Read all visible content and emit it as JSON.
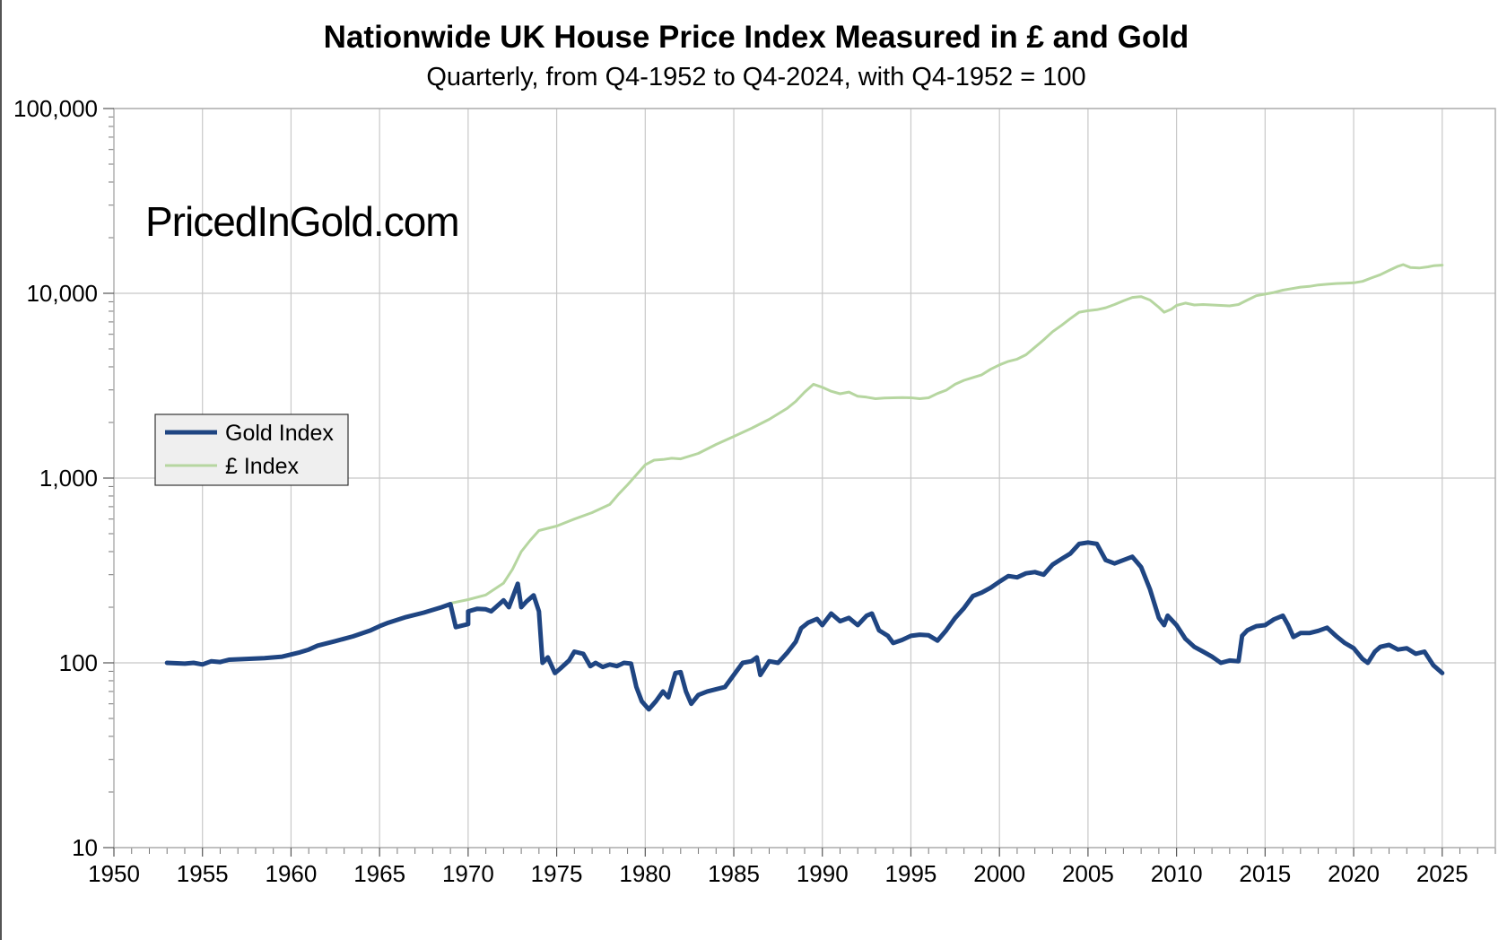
{
  "chart_data": {
    "type": "line",
    "title": "Nationwide UK House Price Index Measured in £ and Gold",
    "subtitle": "Quarterly, from Q4-1952 to Q4-2024, with Q4-1952 = 100",
    "watermark": "PricedInGold.com",
    "xlabel": "",
    "ylabel": "",
    "y_scale": "log",
    "xlim": [
      1950,
      2028
    ],
    "ylim": [
      10,
      100000
    ],
    "x_ticks": [
      1950,
      1955,
      1960,
      1965,
      1970,
      1975,
      1980,
      1985,
      1990,
      1995,
      2000,
      2005,
      2010,
      2015,
      2020,
      2025
    ],
    "x_tick_labels": [
      "1950",
      "1955",
      "1960",
      "1965",
      "1970",
      "1975",
      "1980",
      "1985",
      "1990",
      "1995",
      "2000",
      "2005",
      "2010",
      "2015",
      "2020",
      "2025"
    ],
    "y_ticks": [
      10,
      100,
      1000,
      10000,
      100000
    ],
    "y_tick_labels": [
      "10",
      "100",
      "1,000",
      "10,000",
      "100,000"
    ],
    "grid": true,
    "legend_position": "center-left",
    "series": [
      {
        "name": "Gold Index",
        "color": "#1f4582",
        "points": [
          [
            1953.0,
            100
          ],
          [
            1954.0,
            99
          ],
          [
            1954.5,
            100
          ],
          [
            1955.0,
            98
          ],
          [
            1955.5,
            102
          ],
          [
            1956.0,
            101
          ],
          [
            1956.5,
            104
          ],
          [
            1957.5,
            105
          ],
          [
            1958.5,
            106
          ],
          [
            1959.5,
            108
          ],
          [
            1960.5,
            114
          ],
          [
            1961.0,
            118
          ],
          [
            1961.5,
            124
          ],
          [
            1962.5,
            131
          ],
          [
            1963.5,
            139
          ],
          [
            1964.5,
            150
          ],
          [
            1965.0,
            158
          ],
          [
            1965.5,
            165
          ],
          [
            1966.5,
            177
          ],
          [
            1967.5,
            187
          ],
          [
            1968.5,
            200
          ],
          [
            1969.0,
            208
          ],
          [
            1969.3,
            156
          ],
          [
            1970.0,
            162
          ],
          [
            1970.0,
            190
          ],
          [
            1970.5,
            196
          ],
          [
            1971.0,
            195
          ],
          [
            1971.3,
            190
          ],
          [
            1972.0,
            218
          ],
          [
            1972.3,
            200
          ],
          [
            1972.8,
            268
          ],
          [
            1973.0,
            200
          ],
          [
            1973.3,
            215
          ],
          [
            1973.7,
            232
          ],
          [
            1974.0,
            190
          ],
          [
            1974.2,
            100
          ],
          [
            1974.5,
            107
          ],
          [
            1974.9,
            88
          ],
          [
            1975.2,
            93
          ],
          [
            1975.7,
            103
          ],
          [
            1976.0,
            115
          ],
          [
            1976.5,
            112
          ],
          [
            1976.9,
            96
          ],
          [
            1977.2,
            100
          ],
          [
            1977.6,
            95
          ],
          [
            1978.0,
            98
          ],
          [
            1978.4,
            96
          ],
          [
            1978.8,
            100
          ],
          [
            1979.2,
            99
          ],
          [
            1979.5,
            74
          ],
          [
            1979.8,
            62
          ],
          [
            1980.2,
            56
          ],
          [
            1980.6,
            62
          ],
          [
            1981.0,
            70
          ],
          [
            1981.3,
            65
          ],
          [
            1981.7,
            88
          ],
          [
            1982.0,
            89
          ],
          [
            1982.3,
            70
          ],
          [
            1982.6,
            60
          ],
          [
            1983.0,
            67
          ],
          [
            1983.5,
            70
          ],
          [
            1984.0,
            72
          ],
          [
            1984.5,
            74
          ],
          [
            1985.0,
            86
          ],
          [
            1985.5,
            100
          ],
          [
            1986.0,
            102
          ],
          [
            1986.3,
            107
          ],
          [
            1986.5,
            86
          ],
          [
            1987.0,
            102
          ],
          [
            1987.5,
            100
          ],
          [
            1988.0,
            113
          ],
          [
            1988.5,
            130
          ],
          [
            1988.8,
            154
          ],
          [
            1989.2,
            165
          ],
          [
            1989.7,
            173
          ],
          [
            1990.0,
            160
          ],
          [
            1990.5,
            185
          ],
          [
            1991.0,
            168
          ],
          [
            1991.5,
            175
          ],
          [
            1992.0,
            160
          ],
          [
            1992.5,
            180
          ],
          [
            1992.8,
            185
          ],
          [
            1993.2,
            150
          ],
          [
            1993.7,
            140
          ],
          [
            1994.0,
            128
          ],
          [
            1994.5,
            133
          ],
          [
            1995.0,
            140
          ],
          [
            1995.5,
            142
          ],
          [
            1996.0,
            141
          ],
          [
            1996.5,
            132
          ],
          [
            1997.0,
            150
          ],
          [
            1997.5,
            175
          ],
          [
            1998.0,
            198
          ],
          [
            1998.5,
            230
          ],
          [
            1999.0,
            240
          ],
          [
            1999.5,
            255
          ],
          [
            2000.0,
            275
          ],
          [
            2000.5,
            295
          ],
          [
            2001.0,
            290
          ],
          [
            2001.5,
            305
          ],
          [
            2002.0,
            310
          ],
          [
            2002.5,
            300
          ],
          [
            2003.0,
            340
          ],
          [
            2003.5,
            365
          ],
          [
            2004.0,
            390
          ],
          [
            2004.5,
            440
          ],
          [
            2005.0,
            448
          ],
          [
            2005.5,
            440
          ],
          [
            2006.0,
            360
          ],
          [
            2006.5,
            345
          ],
          [
            2007.0,
            360
          ],
          [
            2007.5,
            375
          ],
          [
            2008.0,
            330
          ],
          [
            2008.5,
            250
          ],
          [
            2009.0,
            175
          ],
          [
            2009.3,
            160
          ],
          [
            2009.5,
            180
          ],
          [
            2010.0,
            160
          ],
          [
            2010.5,
            135
          ],
          [
            2011.0,
            122
          ],
          [
            2011.5,
            115
          ],
          [
            2012.0,
            108
          ],
          [
            2012.5,
            100
          ],
          [
            2013.0,
            103
          ],
          [
            2013.5,
            102
          ],
          [
            2013.7,
            140
          ],
          [
            2014.0,
            150
          ],
          [
            2014.5,
            158
          ],
          [
            2015.0,
            160
          ],
          [
            2015.5,
            172
          ],
          [
            2016.0,
            180
          ],
          [
            2016.3,
            160
          ],
          [
            2016.6,
            138
          ],
          [
            2017.0,
            145
          ],
          [
            2017.5,
            145
          ],
          [
            2018.0,
            149
          ],
          [
            2018.5,
            155
          ],
          [
            2019.0,
            140
          ],
          [
            2019.5,
            128
          ],
          [
            2020.0,
            120
          ],
          [
            2020.5,
            105
          ],
          [
            2020.8,
            100
          ],
          [
            2021.2,
            115
          ],
          [
            2021.5,
            122
          ],
          [
            2022.0,
            125
          ],
          [
            2022.5,
            118
          ],
          [
            2023.0,
            120
          ],
          [
            2023.5,
            112
          ],
          [
            2024.0,
            115
          ],
          [
            2024.5,
            97
          ],
          [
            2025.0,
            88
          ]
        ]
      },
      {
        "name": "£ Index",
        "color": "#b6d6a0",
        "points": [
          [
            1969.0,
            210
          ],
          [
            1970.0,
            220
          ],
          [
            1971.0,
            233
          ],
          [
            1972.0,
            270
          ],
          [
            1972.5,
            320
          ],
          [
            1973.0,
            400
          ],
          [
            1973.5,
            460
          ],
          [
            1974.0,
            520
          ],
          [
            1975.0,
            550
          ],
          [
            1976.0,
            600
          ],
          [
            1977.0,
            650
          ],
          [
            1978.0,
            720
          ],
          [
            1978.5,
            820
          ],
          [
            1979.0,
            920
          ],
          [
            1980.0,
            1180
          ],
          [
            1980.5,
            1250
          ],
          [
            1981.0,
            1260
          ],
          [
            1981.5,
            1280
          ],
          [
            1982.0,
            1270
          ],
          [
            1983.0,
            1360
          ],
          [
            1984.0,
            1520
          ],
          [
            1985.0,
            1680
          ],
          [
            1986.0,
            1860
          ],
          [
            1987.0,
            2080
          ],
          [
            1988.0,
            2380
          ],
          [
            1988.5,
            2600
          ],
          [
            1989.0,
            2920
          ],
          [
            1989.5,
            3220
          ],
          [
            1990.0,
            3100
          ],
          [
            1990.5,
            2950
          ],
          [
            1991.0,
            2860
          ],
          [
            1991.5,
            2920
          ],
          [
            1992.0,
            2770
          ],
          [
            1992.5,
            2740
          ],
          [
            1993.0,
            2690
          ],
          [
            1993.5,
            2710
          ],
          [
            1994.0,
            2720
          ],
          [
            1994.5,
            2730
          ],
          [
            1995.0,
            2720
          ],
          [
            1995.5,
            2690
          ],
          [
            1996.0,
            2720
          ],
          [
            1996.5,
            2870
          ],
          [
            1997.0,
            2990
          ],
          [
            1997.5,
            3220
          ],
          [
            1998.0,
            3380
          ],
          [
            1998.5,
            3500
          ],
          [
            1999.0,
            3620
          ],
          [
            1999.5,
            3880
          ],
          [
            2000.0,
            4100
          ],
          [
            2000.5,
            4280
          ],
          [
            2001.0,
            4400
          ],
          [
            2001.5,
            4650
          ],
          [
            2002.0,
            5100
          ],
          [
            2002.5,
            5600
          ],
          [
            2003.0,
            6200
          ],
          [
            2003.5,
            6700
          ],
          [
            2004.0,
            7300
          ],
          [
            2004.5,
            7900
          ],
          [
            2005.0,
            8050
          ],
          [
            2005.5,
            8150
          ],
          [
            2006.0,
            8350
          ],
          [
            2006.5,
            8700
          ],
          [
            2007.0,
            9100
          ],
          [
            2007.5,
            9500
          ],
          [
            2008.0,
            9600
          ],
          [
            2008.5,
            9200
          ],
          [
            2009.0,
            8400
          ],
          [
            2009.3,
            7900
          ],
          [
            2009.7,
            8200
          ],
          [
            2010.0,
            8600
          ],
          [
            2010.5,
            8850
          ],
          [
            2011.0,
            8650
          ],
          [
            2011.5,
            8700
          ],
          [
            2012.0,
            8650
          ],
          [
            2012.5,
            8600
          ],
          [
            2013.0,
            8550
          ],
          [
            2013.5,
            8700
          ],
          [
            2014.0,
            9200
          ],
          [
            2014.5,
            9700
          ],
          [
            2015.0,
            9900
          ],
          [
            2015.5,
            10100
          ],
          [
            2016.0,
            10400
          ],
          [
            2016.5,
            10600
          ],
          [
            2017.0,
            10800
          ],
          [
            2017.5,
            10900
          ],
          [
            2018.0,
            11100
          ],
          [
            2018.5,
            11200
          ],
          [
            2019.0,
            11300
          ],
          [
            2019.5,
            11350
          ],
          [
            2020.0,
            11400
          ],
          [
            2020.5,
            11600
          ],
          [
            2021.0,
            12100
          ],
          [
            2021.5,
            12600
          ],
          [
            2022.0,
            13300
          ],
          [
            2022.5,
            14000
          ],
          [
            2022.8,
            14300
          ],
          [
            2023.2,
            13800
          ],
          [
            2023.7,
            13700
          ],
          [
            2024.2,
            13900
          ],
          [
            2024.5,
            14100
          ],
          [
            2025.0,
            14200
          ]
        ]
      }
    ]
  }
}
